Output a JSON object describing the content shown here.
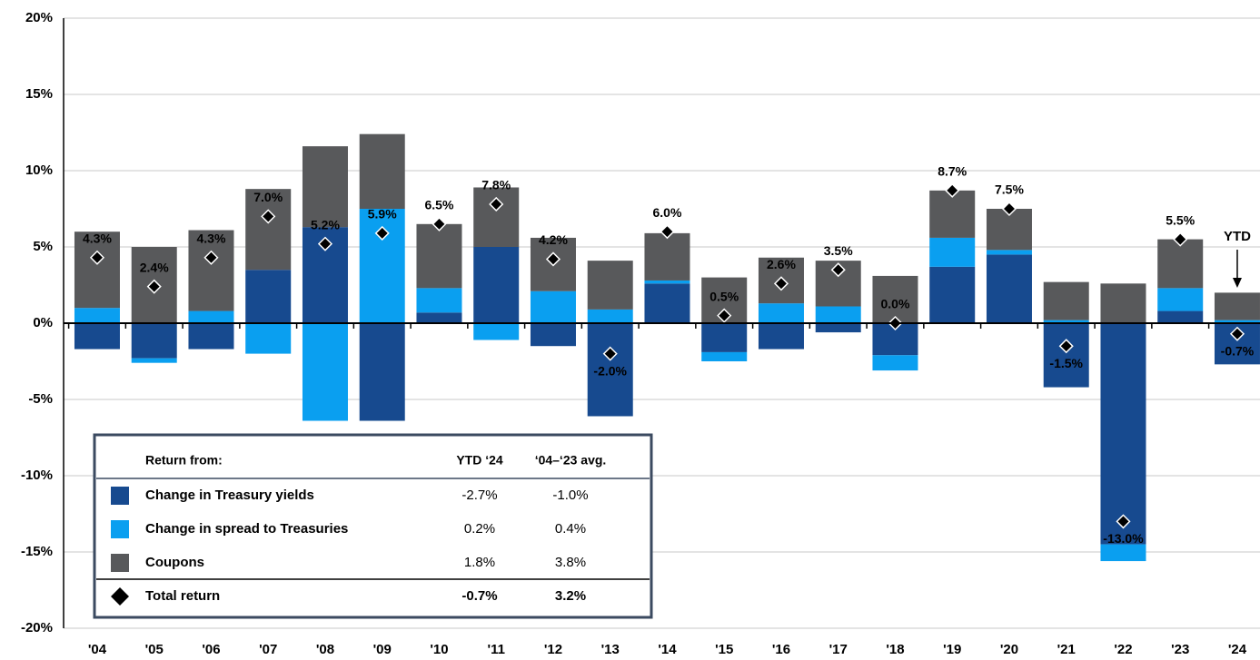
{
  "chart_data": {
    "type": "stacked-bar",
    "categories": [
      "'04",
      "'05",
      "'06",
      "'07",
      "'08",
      "'09",
      "'10",
      "'11",
      "'12",
      "'13",
      "'14",
      "'15",
      "'16",
      "'17",
      "'18",
      "'19",
      "'20",
      "'21",
      "'22",
      "'23",
      "'24"
    ],
    "series": [
      {
        "name": "Change in Treasury yields",
        "color": "#174a8f",
        "values": [
          -1.7,
          -2.3,
          -1.7,
          3.5,
          6.3,
          -6.4,
          0.7,
          5.0,
          -1.5,
          -6.1,
          2.6,
          -1.9,
          -1.7,
          -0.6,
          -2.1,
          3.7,
          4.5,
          -4.2,
          -14.5,
          0.8,
          -2.7
        ]
      },
      {
        "name": "Change in spread to Treasuries",
        "color": "#0a9ff0",
        "values": [
          1.0,
          -0.3,
          0.8,
          -2.0,
          -6.4,
          7.5,
          1.6,
          -1.1,
          2.1,
          0.9,
          0.2,
          -0.6,
          1.3,
          1.1,
          -1.0,
          1.9,
          0.3,
          0.2,
          -1.1,
          1.5,
          0.2
        ]
      },
      {
        "name": "Coupons",
        "color": "#58595b",
        "values": [
          5.0,
          5.0,
          5.3,
          5.3,
          5.3,
          4.9,
          4.2,
          3.9,
          3.5,
          3.2,
          3.1,
          3.0,
          3.0,
          3.0,
          3.1,
          3.1,
          2.7,
          2.5,
          2.6,
          3.2,
          1.8
        ]
      }
    ],
    "total": {
      "name": "Total return",
      "color": "#000000",
      "values": [
        4.3,
        2.4,
        4.3,
        7.0,
        5.2,
        5.9,
        6.5,
        7.8,
        4.2,
        -2.0,
        6.0,
        0.5,
        2.6,
        3.5,
        0.0,
        8.7,
        7.5,
        -1.5,
        -13.0,
        5.5,
        -0.7
      ],
      "value_labels": [
        "4.3%",
        "2.4%",
        "4.3%",
        "7.0%",
        "5.2%",
        "5.9%",
        "6.5%",
        "7.8%",
        "4.2%",
        "-2.0%",
        "6.0%",
        "0.5%",
        "2.6%",
        "3.5%",
        "0.0%",
        "8.7%",
        "7.5%",
        "-1.5%",
        "-13.0%",
        "5.5%",
        "-0.7%"
      ]
    },
    "annotation": "YTD",
    "ylim": [
      -20,
      20
    ],
    "yticks": [
      {
        "value": -20,
        "label": "-20%"
      },
      {
        "value": -15,
        "label": "-15%"
      },
      {
        "value": -10,
        "label": "-10%"
      },
      {
        "value": -5,
        "label": "-5%"
      },
      {
        "value": 0,
        "label": "0%"
      },
      {
        "value": 5,
        "label": "5%"
      },
      {
        "value": 10,
        "label": "10%"
      },
      {
        "value": 15,
        "label": "15%"
      },
      {
        "value": 20,
        "label": "20%"
      }
    ],
    "grid": true,
    "table": {
      "columns": [
        "Return from:",
        "YTD ‘24",
        "‘04–‘23 avg."
      ],
      "rows": [
        [
          "-2.7%",
          "-1.0%"
        ],
        [
          "0.2%",
          "0.4%"
        ],
        [
          "1.8%",
          "3.8%"
        ],
        [
          "-0.7%",
          "3.2%"
        ]
      ]
    }
  }
}
